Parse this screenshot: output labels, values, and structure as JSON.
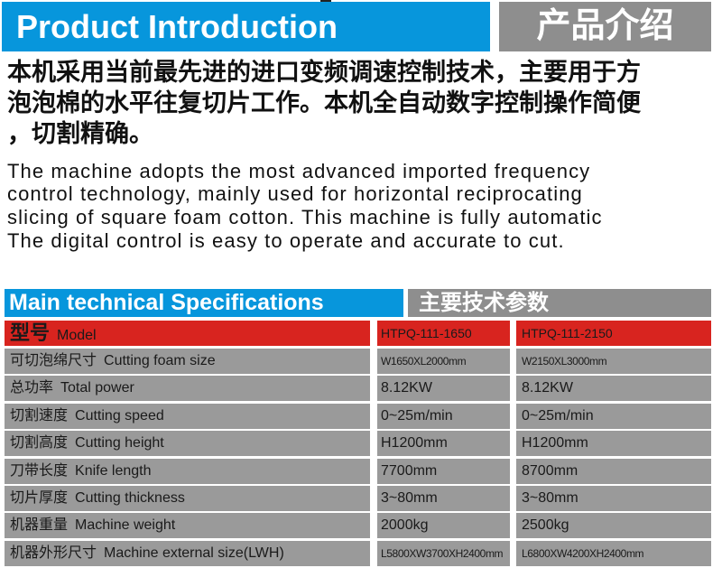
{
  "header": {
    "title_en": "Product Introduction",
    "title_cn": "产品介绍"
  },
  "intro_cn": [
    "本机采用当前最先进的进口变频调速控制技术，主要用于方",
    "泡泡棉的水平往复切片工作。本机全自动数字控制操作简便",
    "，切割精确。"
  ],
  "intro_en": [
    "The machine adopts the most advanced imported frequency",
    "control technology, mainly used for horizontal reciprocating",
    "slicing of square foam cotton. This machine is fully automatic",
    "The digital control is easy to operate and accurate to cut."
  ],
  "specs": {
    "title_en": "Main technical Specifications",
    "title_cn": "主要技术参数",
    "header": {
      "cn": "型号",
      "en": "Model",
      "models": [
        "HTPQ-111-1650",
        "HTPQ-111-2150"
      ]
    },
    "rows": [
      {
        "cn": "可切泡绵尺寸",
        "en": "Cutting foam size",
        "v1": "W1650XL2000mm",
        "v2": "W2150XL3000mm"
      },
      {
        "cn": "总功率",
        "en": "Total power",
        "v1": "8.12KW",
        "v2": "8.12KW"
      },
      {
        "cn": "切割速度",
        "en": "Cutting speed",
        "v1": "0~25m/min",
        "v2": "0~25m/min"
      },
      {
        "cn": "切割高度",
        "en": "Cutting height",
        "v1": "H1200mm",
        "v2": "H1200mm"
      },
      {
        "cn": "刀带长度",
        "en": "Knife length",
        "v1": "7700mm",
        "v2": "8700mm"
      },
      {
        "cn": "切片厚度",
        "en": "Cutting thickness",
        "v1": "3~80mm",
        "v2": "3~80mm"
      },
      {
        "cn": "机器重量",
        "en": "Machine weight",
        "v1": "2000kg",
        "v2": "2500kg"
      },
      {
        "cn": "机器外形尺寸",
        "en": "Machine external size(LWH)",
        "v1": "L5800XW3700XH2400mm",
        "v2": "L6800XW4200XH2400mm"
      }
    ]
  },
  "colors": {
    "blue": "#0796dc",
    "gray": "#8e8e8e",
    "red": "#d8241f"
  }
}
